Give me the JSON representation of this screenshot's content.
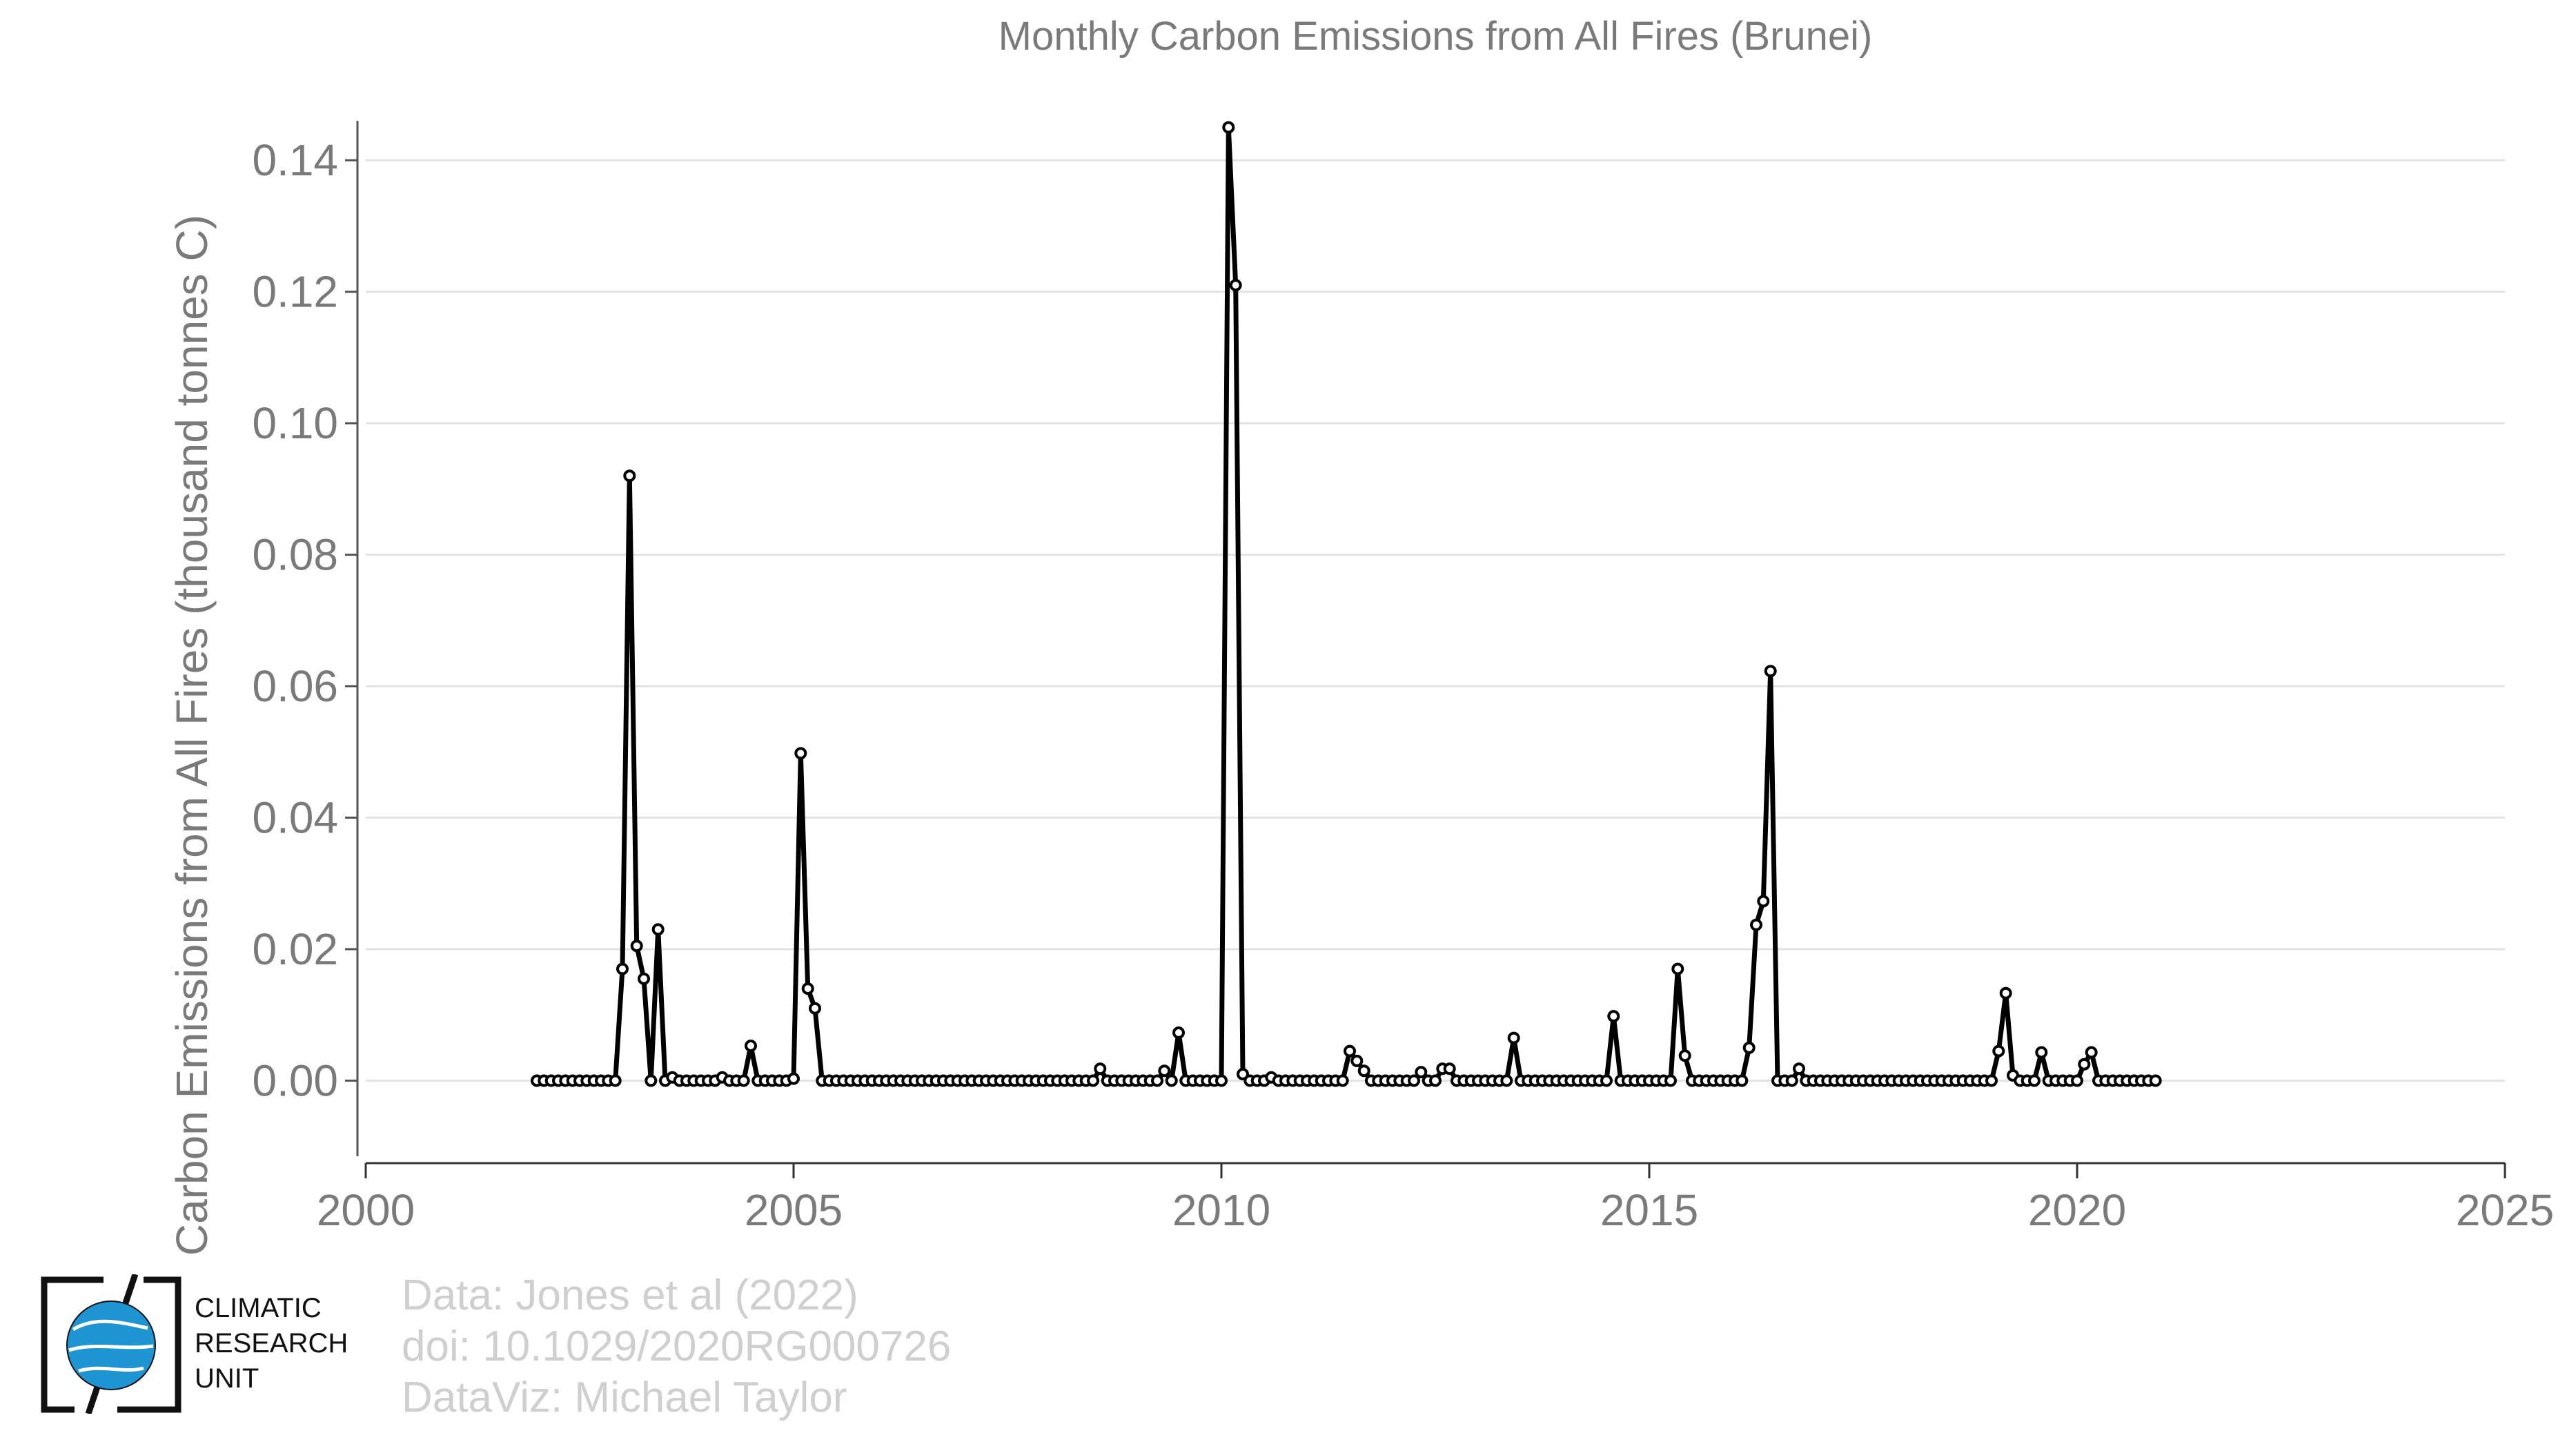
{
  "chart_data": {
    "type": "line",
    "title": "Monthly Carbon Emissions from All Fires (Brunei)",
    "xlabel": "",
    "ylabel": "Carbon Emissions from All Fires (thousand tonnes C)",
    "xlim": [
      2000,
      2025
    ],
    "ylim": [
      -0.0115,
      0.146
    ],
    "x_ticks": [
      "2000",
      "2005",
      "2010",
      "2015",
      "2020",
      "2025"
    ],
    "y_ticks": [
      "0.00",
      "0.02",
      "0.04",
      "0.06",
      "0.08",
      "0.10",
      "0.12",
      "0.14"
    ],
    "grid": "horizontal",
    "legend": "none",
    "line_color": "#000000",
    "marker": "open-circle",
    "series": [
      {
        "start": "2002-01",
        "frequency": "monthly",
        "values": [
          0,
          0,
          0,
          0,
          0,
          0,
          0,
          0,
          0,
          0,
          0,
          0,
          0.017,
          0.092,
          0.0205,
          0.0155,
          0,
          0.023,
          0,
          0.0005,
          0,
          0,
          0,
          0,
          0,
          0,
          0.0005,
          0,
          0,
          0,
          0.0053,
          0,
          0,
          0,
          0,
          0,
          0.0003,
          0.0498,
          0.014,
          0.011,
          0,
          0,
          0,
          0,
          0,
          0,
          0,
          0,
          0,
          0,
          0,
          0,
          0,
          0,
          0,
          0,
          0,
          0,
          0,
          0,
          0,
          0,
          0,
          0,
          0,
          0,
          0,
          0,
          0,
          0,
          0,
          0,
          0,
          0,
          0,
          0,
          0,
          0,
          0,
          0.0018,
          0,
          0,
          0,
          0,
          0,
          0,
          0,
          0,
          0.0015,
          0,
          0.0073,
          0,
          0,
          0,
          0,
          0,
          0,
          0.145,
          0.121,
          0.001,
          0,
          0,
          0,
          0.0005,
          0,
          0,
          0,
          0,
          0,
          0,
          0,
          0,
          0,
          0,
          0.0045,
          0.003,
          0.0015,
          0,
          0,
          0,
          0,
          0,
          0,
          0,
          0.0013,
          0,
          0,
          0.0018,
          0.0018,
          0,
          0,
          0,
          0,
          0,
          0,
          0,
          0,
          0.0065,
          0,
          0,
          0,
          0,
          0,
          0,
          0,
          0,
          0,
          0,
          0,
          0,
          0,
          0.0098,
          0,
          0,
          0,
          0,
          0,
          0,
          0,
          0,
          0.017,
          0.0038,
          0,
          0,
          0,
          0,
          0,
          0,
          0,
          0,
          0.005,
          0.0237,
          0.0273,
          0.0623,
          0,
          0,
          0,
          0.0018,
          0,
          0,
          0,
          0,
          0,
          0,
          0,
          0,
          0,
          0,
          0,
          0,
          0,
          0,
          0,
          0,
          0,
          0,
          0,
          0,
          0,
          0,
          0,
          0,
          0,
          0,
          0,
          0.0045,
          0.0133,
          0.0008,
          0,
          0,
          0,
          0.0043,
          0,
          0,
          0,
          0,
          0,
          0.0025,
          0.0043,
          0,
          0,
          0,
          0,
          0,
          0,
          0,
          0,
          0
        ]
      }
    ]
  },
  "credits": {
    "line1": "Data: Jones et al (2022)",
    "line2": "doi: 10.1029/2020RG000726",
    "line3": "DataViz: Michael Taylor"
  },
  "logo": {
    "line1": "CLIMATIC",
    "line2": "RESEARCH",
    "line3": "UNIT",
    "globe_color": "#1e94d2"
  }
}
